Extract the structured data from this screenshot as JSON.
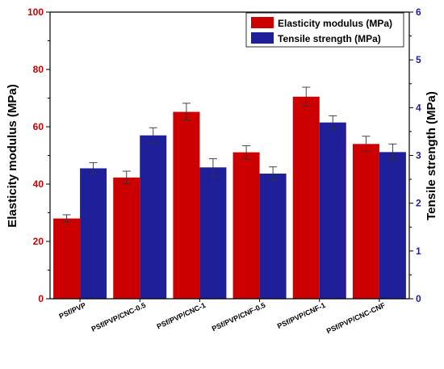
{
  "chart_data": {
    "type": "bar",
    "categories": [
      "PSf/PVP",
      "PSf/PVP/CNC-0.5",
      "PSf/PVP/CNC-1",
      "PSf/PVP/CNF-0.5",
      "PSf/PVP/CNF-1",
      "PSf/PVP/CNC-CNF"
    ],
    "series": [
      {
        "name": "Elasticity modulus (MPa)",
        "axis": "left",
        "color": "#cc0000",
        "values": [
          28.0,
          42.3,
          65.2,
          51.1,
          70.5,
          54.0
        ],
        "errors": [
          1.3,
          2.2,
          3.0,
          2.3,
          3.3,
          2.7
        ]
      },
      {
        "name": "Tensile strength (MPa)",
        "axis": "right",
        "color": "#1f1f99",
        "values": [
          2.73,
          3.42,
          2.75,
          2.62,
          3.69,
          3.07
        ],
        "errors": [
          0.12,
          0.16,
          0.18,
          0.14,
          0.14,
          0.17
        ]
      }
    ],
    "ylabel_left": "Elasticity modulus (MPa)",
    "ylabel_right": "Tensile strength (MPa)",
    "ylim_left": [
      0,
      100
    ],
    "ylim_right": [
      0,
      6
    ],
    "yticks_left": [
      "0",
      "20",
      "40",
      "60",
      "80",
      "100"
    ],
    "yticks_right": [
      "0",
      "1",
      "2",
      "3",
      "4",
      "5",
      "6"
    ],
    "left_axis_color": "#cc0000",
    "right_axis_color": "#1f1f99",
    "legend_position": "top-right",
    "grid": false
  }
}
